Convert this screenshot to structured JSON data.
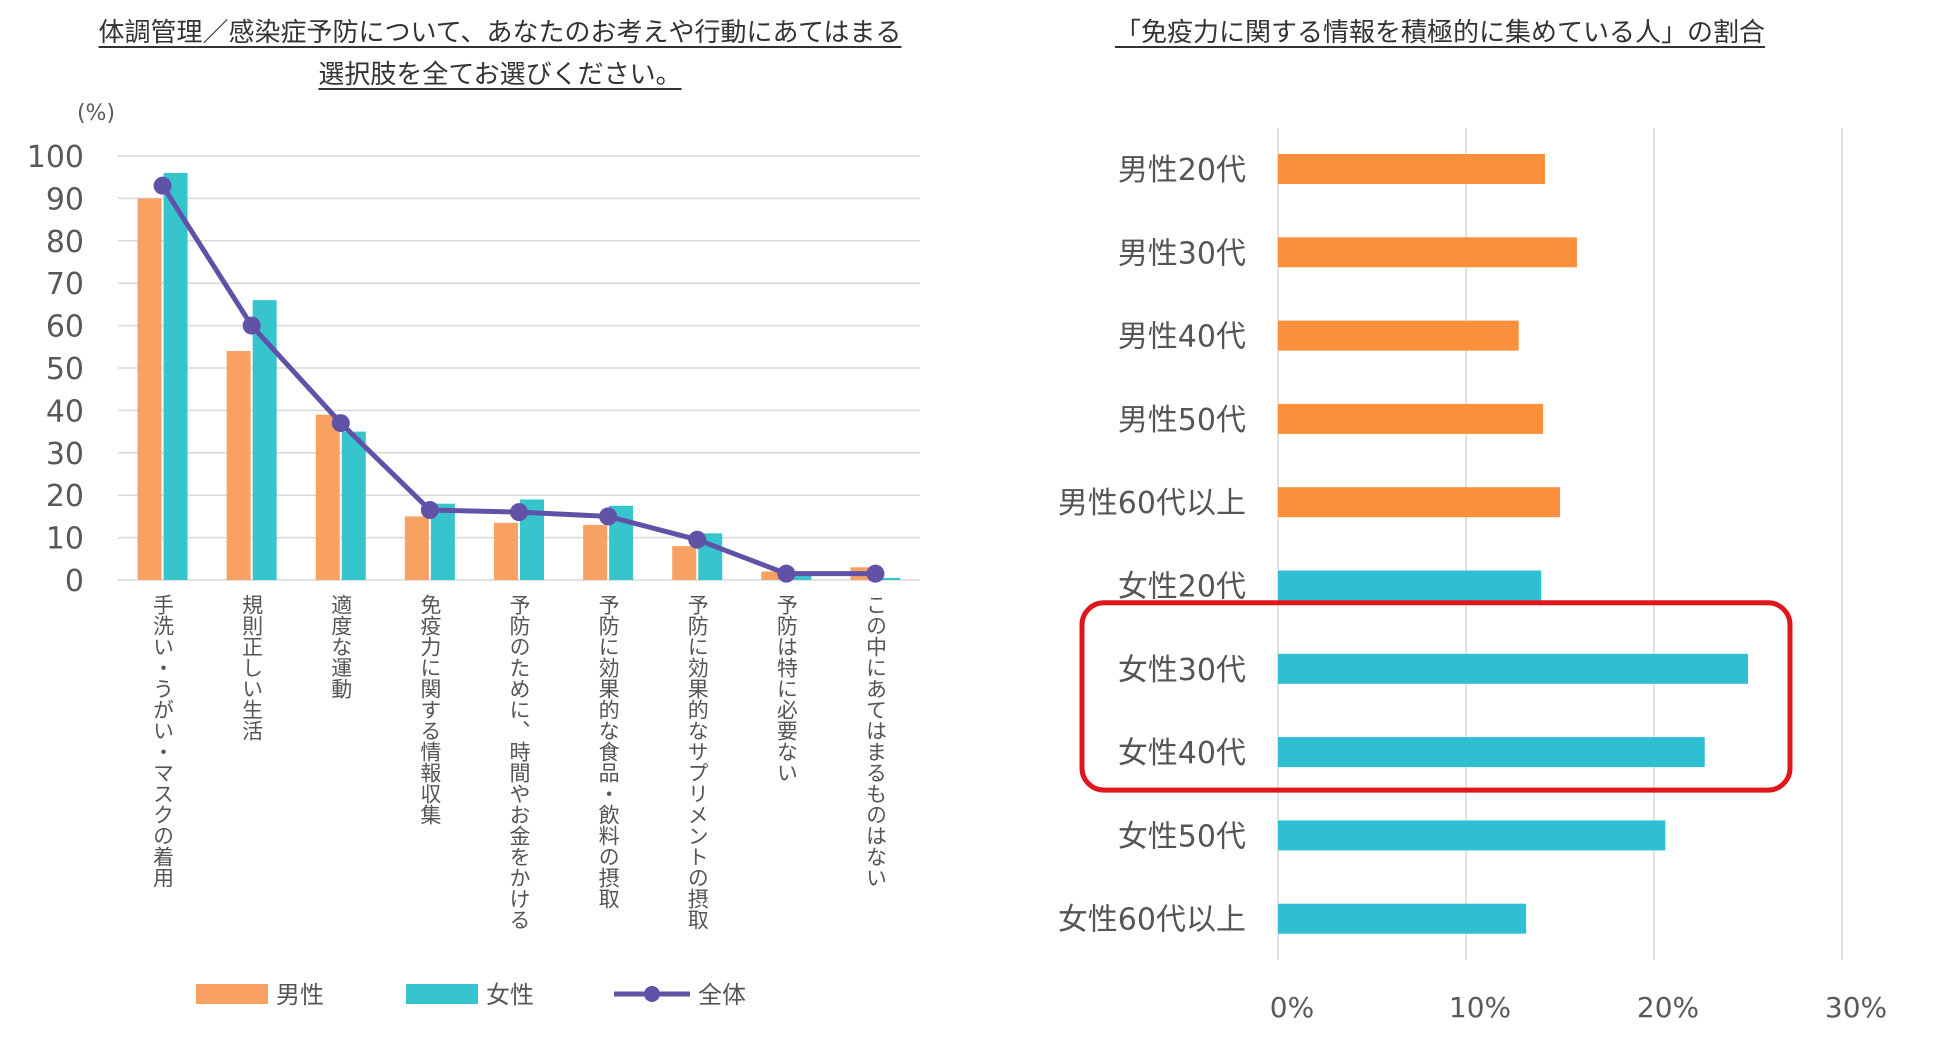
{
  "colors": {
    "male": "#f8a163",
    "female": "#36c5cc",
    "total": "#6152a8",
    "male_bar_right": "#fb8f3c",
    "female_bar_right": "#2ebfd3",
    "highlight": "#e0161d",
    "grid": "#d9d9d9"
  },
  "chart_data": [
    {
      "type": "bar",
      "title": [
        "体調管理／感染症予防について、あなたのお考えや行動にあてはまる",
        "選択肢を全てお選びください。"
      ],
      "ylabel": "(%)",
      "ylim": [
        0,
        100
      ],
      "yticks": [
        0,
        10,
        20,
        30,
        40,
        50,
        60,
        70,
        80,
        90,
        100
      ],
      "grid": true,
      "categories": [
        "手洗い・うがい・マスクの着用",
        "規則正しい生活",
        "適度な運動",
        "免疫力に関する情報収集",
        "予防のために、時間やお金をかける",
        "予防に効果的な食品・飲料の摂取",
        "予防に効果的なサプリメントの摂取",
        "予防は特に必要ない",
        "この中にあてはまるものはない"
      ],
      "series": [
        {
          "name": "男性",
          "type": "bar",
          "values": [
            90,
            54,
            39,
            15,
            13.5,
            13,
            8,
            2,
            3
          ]
        },
        {
          "name": "女性",
          "type": "bar",
          "values": [
            96,
            66,
            35,
            18,
            19,
            17.5,
            11,
            1,
            0.5
          ]
        },
        {
          "name": "全体",
          "type": "line",
          "values": [
            93,
            60,
            37,
            16.5,
            16,
            15,
            9.5,
            1.5,
            1.5
          ]
        }
      ],
      "legend_position": "bottom"
    },
    {
      "type": "bar",
      "orientation": "horizontal",
      "title": "「免疫力に関する情報を積極的に集めている人」の割合",
      "categories": [
        "男性20代",
        "男性30代",
        "男性40代",
        "男性50代",
        "男性60代以上",
        "女性20代",
        "女性30代",
        "女性40代",
        "女性50代",
        "女性60代以上"
      ],
      "values": [
        14.2,
        15.9,
        12.8,
        14.1,
        15.0,
        14.0,
        25.0,
        22.7,
        20.6,
        13.2
      ],
      "group": [
        "male",
        "male",
        "male",
        "male",
        "male",
        "female",
        "female",
        "female",
        "female",
        "female"
      ],
      "xlim": [
        0,
        30
      ],
      "xticks": [
        "0%",
        "10%",
        "20%",
        "30%"
      ],
      "grid": true,
      "highlight": [
        "女性30代",
        "女性40代"
      ]
    }
  ]
}
